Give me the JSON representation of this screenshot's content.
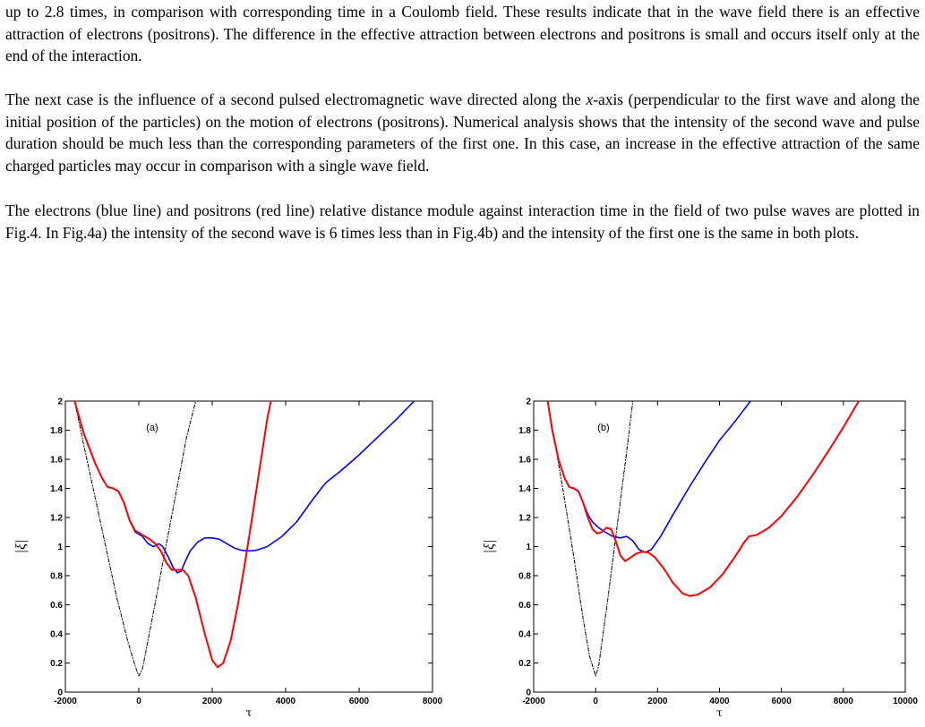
{
  "paragraphs": {
    "p1": "up to 2.8 times, in comparison with corresponding time in a Coulomb field. These results indicate that in the wave field there is an effective attraction of electrons (positrons). The difference in the effective attraction between electrons and positrons is small and occurs itself only at the end of the interaction.",
    "p2_a": "The next case is the influence of a second pulsed electromagnetic wave directed along the ",
    "p2_var": "x",
    "p2_b": "-axis (perpendicular to the first wave and along the initial position of the particles) on the motion of electrons (positrons). Numerical analysis shows that the intensity of the second wave and pulse duration should be much less than the corresponding parameters of the first one. In this case, an increase in the effective attraction of the same charged particles may occur in comparison with a single wave field.",
    "p3": "The electrons (blue line) and positrons (red line) relative distance module against interaction time in the field of two pulse waves are plotted in Fig.4. In Fig.4a) the intensity of the second wave is 6 times less than in Fig.4b) and the intensity of the first one is the same in both plots."
  },
  "colors": {
    "electrons": "#0000ff",
    "positrons": "#ff0000",
    "reference": "#000000"
  },
  "chart_data": [
    {
      "type": "line",
      "panel_label": "(a)",
      "xlabel": "τ",
      "ylabel": "|ξ|",
      "xlim": [
        -2000,
        8000
      ],
      "ylim": [
        0,
        2
      ],
      "xticks": [
        "-2000",
        "0",
        "2000",
        "4000",
        "6000",
        "8000"
      ],
      "yticks": [
        "0",
        "0.2",
        "0.4",
        "0.6",
        "0.8",
        "1",
        "1.2",
        "1.4",
        "1.6",
        "1.8",
        "2"
      ],
      "grid": false,
      "series": [
        {
          "role": "electrons",
          "style": "solid",
          "color": "#0000ff",
          "points": [
            [
              -1750,
              2.0
            ],
            [
              -1500,
              1.78
            ],
            [
              -1200,
              1.58
            ],
            [
              -1000,
              1.47
            ],
            [
              -850,
              1.41
            ],
            [
              -700,
              1.4
            ],
            [
              -550,
              1.38
            ],
            [
              -400,
              1.3
            ],
            [
              -250,
              1.18
            ],
            [
              -100,
              1.1
            ],
            [
              100,
              1.07
            ],
            [
              250,
              1.02
            ],
            [
              400,
              1.0
            ],
            [
              550,
              1.02
            ],
            [
              650,
              1.0
            ],
            [
              800,
              0.93
            ],
            [
              950,
              0.85
            ],
            [
              1050,
              0.82
            ],
            [
              1150,
              0.83
            ],
            [
              1250,
              0.89
            ],
            [
              1400,
              0.97
            ],
            [
              1600,
              1.03
            ],
            [
              1800,
              1.06
            ],
            [
              2000,
              1.06
            ],
            [
              2200,
              1.05
            ],
            [
              2400,
              1.02
            ],
            [
              2600,
              0.99
            ],
            [
              2800,
              0.975
            ],
            [
              3000,
              0.97
            ],
            [
              3200,
              0.975
            ],
            [
              3500,
              1.0
            ],
            [
              3900,
              1.07
            ],
            [
              4300,
              1.17
            ],
            [
              4700,
              1.31
            ],
            [
              5000,
              1.41
            ],
            [
              5100,
              1.44
            ],
            [
              5500,
              1.52
            ],
            [
              6000,
              1.63
            ],
            [
              6500,
              1.75
            ],
            [
              7000,
              1.87
            ],
            [
              7500,
              2.0
            ]
          ]
        },
        {
          "role": "positrons",
          "style": "solid",
          "color": "#ff0000",
          "points": [
            [
              -1750,
              2.0
            ],
            [
              -1500,
              1.78
            ],
            [
              -1200,
              1.58
            ],
            [
              -1000,
              1.47
            ],
            [
              -850,
              1.41
            ],
            [
              -700,
              1.4
            ],
            [
              -550,
              1.38
            ],
            [
              -400,
              1.3
            ],
            [
              -250,
              1.18
            ],
            [
              -100,
              1.11
            ],
            [
              100,
              1.08
            ],
            [
              300,
              1.05
            ],
            [
              450,
              1.02
            ],
            [
              600,
              0.97
            ],
            [
              750,
              0.89
            ],
            [
              900,
              0.84
            ],
            [
              1050,
              0.84
            ],
            [
              1200,
              0.84
            ],
            [
              1350,
              0.8
            ],
            [
              1550,
              0.65
            ],
            [
              1800,
              0.4
            ],
            [
              2000,
              0.22
            ],
            [
              2150,
              0.17
            ],
            [
              2300,
              0.2
            ],
            [
              2500,
              0.35
            ],
            [
              2700,
              0.6
            ],
            [
              2900,
              0.9
            ],
            [
              3100,
              1.22
            ],
            [
              3300,
              1.55
            ],
            [
              3500,
              1.88
            ],
            [
              3600,
              2.0
            ]
          ]
        },
        {
          "role": "reference",
          "style": "dash-dot",
          "color": "#000000",
          "points": [
            [
              -1750,
              2.0
            ],
            [
              -1500,
              1.7
            ],
            [
              -1200,
              1.35
            ],
            [
              -900,
              1.0
            ],
            [
              -600,
              0.65
            ],
            [
              -300,
              0.35
            ],
            [
              -100,
              0.18
            ],
            [
              0,
              0.11
            ],
            [
              100,
              0.16
            ],
            [
              400,
              0.55
            ],
            [
              700,
              0.95
            ],
            [
              1000,
              1.35
            ],
            [
              1300,
              1.75
            ],
            [
              1550,
              2.0
            ]
          ]
        }
      ]
    },
    {
      "type": "line",
      "panel_label": "(b)",
      "xlabel": "τ",
      "ylabel": "|ξ|",
      "xlim": [
        -2000,
        10000
      ],
      "ylim": [
        0,
        2
      ],
      "xticks": [
        "-2000",
        "0",
        "2000",
        "4000",
        "6000",
        "8000",
        "10000"
      ],
      "yticks": [
        "0",
        "0.2",
        "0.4",
        "0.6",
        "0.8",
        "1",
        "1.2",
        "1.4",
        "1.6",
        "1.8",
        "2"
      ],
      "grid": false,
      "series": [
        {
          "role": "electrons",
          "style": "solid",
          "color": "#0000ff",
          "points": [
            [
              -1550,
              2.0
            ],
            [
              -1400,
              1.8
            ],
            [
              -1200,
              1.6
            ],
            [
              -1000,
              1.47
            ],
            [
              -850,
              1.41
            ],
            [
              -700,
              1.4
            ],
            [
              -550,
              1.38
            ],
            [
              -400,
              1.3
            ],
            [
              -250,
              1.22
            ],
            [
              -100,
              1.17
            ],
            [
              100,
              1.13
            ],
            [
              300,
              1.1
            ],
            [
              550,
              1.07
            ],
            [
              800,
              1.06
            ],
            [
              1000,
              1.07
            ],
            [
              1200,
              1.04
            ],
            [
              1400,
              0.98
            ],
            [
              1600,
              0.96
            ],
            [
              1800,
              0.98
            ],
            [
              2100,
              1.07
            ],
            [
              2500,
              1.22
            ],
            [
              3000,
              1.4
            ],
            [
              3500,
              1.57
            ],
            [
              4000,
              1.73
            ],
            [
              4500,
              1.86
            ],
            [
              5000,
              2.0
            ]
          ]
        },
        {
          "role": "positrons",
          "style": "solid",
          "color": "#ff0000",
          "points": [
            [
              -1550,
              2.0
            ],
            [
              -1400,
              1.8
            ],
            [
              -1200,
              1.6
            ],
            [
              -1000,
              1.47
            ],
            [
              -850,
              1.41
            ],
            [
              -700,
              1.4
            ],
            [
              -550,
              1.38
            ],
            [
              -400,
              1.3
            ],
            [
              -250,
              1.2
            ],
            [
              -100,
              1.12
            ],
            [
              50,
              1.09
            ],
            [
              200,
              1.1
            ],
            [
              350,
              1.13
            ],
            [
              500,
              1.12
            ],
            [
              650,
              1.04
            ],
            [
              800,
              0.94
            ],
            [
              950,
              0.9
            ],
            [
              1100,
              0.92
            ],
            [
              1300,
              0.95
            ],
            [
              1500,
              0.965
            ],
            [
              1700,
              0.96
            ],
            [
              1900,
              0.93
            ],
            [
              2200,
              0.85
            ],
            [
              2500,
              0.75
            ],
            [
              2800,
              0.68
            ],
            [
              3050,
              0.66
            ],
            [
              3300,
              0.67
            ],
            [
              3700,
              0.72
            ],
            [
              4100,
              0.81
            ],
            [
              4500,
              0.93
            ],
            [
              4800,
              1.03
            ],
            [
              4950,
              1.07
            ],
            [
              5200,
              1.08
            ],
            [
              5600,
              1.13
            ],
            [
              6000,
              1.21
            ],
            [
              6500,
              1.34
            ],
            [
              7000,
              1.49
            ],
            [
              7500,
              1.65
            ],
            [
              8000,
              1.82
            ],
            [
              8500,
              2.0
            ]
          ]
        },
        {
          "role": "reference",
          "style": "dash-dot",
          "color": "#000000",
          "points": [
            [
              -1550,
              2.0
            ],
            [
              -1300,
              1.7
            ],
            [
              -1000,
              1.32
            ],
            [
              -700,
              0.92
            ],
            [
              -400,
              0.5
            ],
            [
              -200,
              0.25
            ],
            [
              0,
              0.11
            ],
            [
              100,
              0.18
            ],
            [
              400,
              0.65
            ],
            [
              700,
              1.15
            ],
            [
              1000,
              1.65
            ],
            [
              1200,
              2.0
            ]
          ]
        }
      ]
    }
  ]
}
